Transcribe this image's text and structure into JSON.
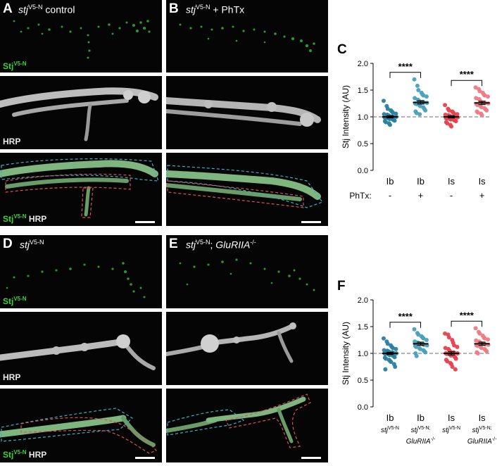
{
  "panels": {
    "A": {
      "letter": "A",
      "title_italic": "stj",
      "title_sup": "V5-N",
      "title_rest": " control"
    },
    "B": {
      "letter": "B",
      "title_italic": "stj",
      "title_sup": "V5-N",
      "title_rest": " + PhTx"
    },
    "D": {
      "letter": "D",
      "title_italic": "stj",
      "title_sup": "V5-N",
      "title_rest": ""
    },
    "E": {
      "letter": "E",
      "title_italic": "stj",
      "title_sup": "V5-N",
      "title_rest": "; ",
      "title_italic2": "GluRIIA",
      "title_sup2": "-/-"
    }
  },
  "channels": {
    "stj": "Stj",
    "stj_sup": "V5-N",
    "hrp": "HRP"
  },
  "chart_data": [
    {
      "panel_letter": "C",
      "type": "scatter",
      "ylabel": "Stj Intensity (AU)",
      "ylim": [
        0.0,
        2.0
      ],
      "yticks": [
        "0.0",
        "0.5",
        "1.0",
        "1.5",
        "2.0"
      ],
      "reference_line": 1.0,
      "categories": [
        "Ib",
        "Ib",
        "Is",
        "Is"
      ],
      "row2_label": "PhTx:",
      "row2": [
        "-",
        "+",
        "-",
        "+"
      ],
      "colors": [
        "#2a7f9e",
        "#4aa0b8",
        "#e8404f",
        "#ef7a84"
      ],
      "means": [
        1.0,
        1.27,
        1.0,
        1.26
      ],
      "sem": [
        0.02,
        0.03,
        0.02,
        0.03
      ],
      "significance": [
        {
          "from": 0,
          "to": 1,
          "label": "****"
        },
        {
          "from": 2,
          "to": 3,
          "label": "****"
        }
      ],
      "series": [
        {
          "values": [
            1.3,
            1.2,
            1.15,
            1.12,
            1.1,
            1.08,
            1.06,
            1.05,
            1.04,
            1.03,
            1.02,
            1.01,
            1.0,
            1.0,
            0.99,
            0.98,
            0.97,
            0.96,
            0.95,
            0.94,
            0.93,
            0.92,
            0.9,
            0.88,
            0.85
          ]
        },
        {
          "values": [
            1.7,
            1.58,
            1.5,
            1.45,
            1.42,
            1.4,
            1.38,
            1.35,
            1.32,
            1.3,
            1.29,
            1.28,
            1.27,
            1.26,
            1.25,
            1.24,
            1.22,
            1.2,
            1.18,
            1.15,
            1.12,
            1.1,
            1.07,
            1.05
          ]
        },
        {
          "values": [
            1.22,
            1.15,
            1.12,
            1.1,
            1.08,
            1.06,
            1.05,
            1.04,
            1.03,
            1.02,
            1.01,
            1.0,
            1.0,
            0.99,
            0.98,
            0.97,
            0.96,
            0.95,
            0.94,
            0.93,
            0.92,
            0.9,
            0.88,
            0.85,
            0.82
          ]
        },
        {
          "values": [
            1.55,
            1.52,
            1.48,
            1.45,
            1.42,
            1.4,
            1.38,
            1.35,
            1.33,
            1.3,
            1.28,
            1.27,
            1.26,
            1.25,
            1.24,
            1.22,
            1.2,
            1.18,
            1.16,
            1.14,
            1.12,
            1.1,
            1.08,
            1.06,
            1.03
          ]
        }
      ]
    },
    {
      "panel_letter": "F",
      "type": "scatter",
      "ylabel": "Stj Intensity (AU)",
      "ylim": [
        0.0,
        2.0
      ],
      "yticks": [
        "0.0",
        "0.5",
        "1.0",
        "1.5",
        "2.0"
      ],
      "reference_line": 1.0,
      "categories": [
        "Ib",
        "Ib",
        "Is",
        "Is"
      ],
      "genotype_italic": "stj",
      "genotype_sup": "V5-N",
      "genotype2_line2_italic": "GluRIIA",
      "genotype2_line2_sup": "-/-",
      "genotype_types": [
        "single",
        "double",
        "single",
        "double"
      ],
      "colors": [
        "#2a7f9e",
        "#4aa0b8",
        "#e8404f",
        "#ef7a84"
      ],
      "means": [
        1.0,
        1.18,
        1.0,
        1.18
      ],
      "sem": [
        0.02,
        0.03,
        0.03,
        0.03
      ],
      "significance": [
        {
          "from": 0,
          "to": 1,
          "label": "****"
        },
        {
          "from": 2,
          "to": 3,
          "label": "****"
        }
      ],
      "series": [
        {
          "values": [
            1.28,
            1.22,
            1.18,
            1.15,
            1.12,
            1.1,
            1.08,
            1.06,
            1.05,
            1.04,
            1.03,
            1.02,
            1.01,
            1.0,
            1.0,
            0.99,
            0.98,
            0.97,
            0.96,
            0.95,
            0.93,
            0.92,
            0.9,
            0.88,
            0.86,
            0.84,
            0.8,
            0.75,
            0.7
          ]
        },
        {
          "values": [
            1.45,
            1.38,
            1.35,
            1.32,
            1.3,
            1.28,
            1.25,
            1.22,
            1.2,
            1.19,
            1.18,
            1.17,
            1.16,
            1.15,
            1.14,
            1.12,
            1.1,
            1.08,
            1.06,
            1.04,
            1.02,
            1.0,
            0.95
          ]
        },
        {
          "values": [
            1.37,
            1.35,
            1.3,
            1.25,
            1.2,
            1.15,
            1.12,
            1.1,
            1.08,
            1.05,
            1.03,
            1.02,
            1.01,
            1.0,
            1.0,
            0.99,
            0.98,
            0.96,
            0.95,
            0.93,
            0.9,
            0.88,
            0.85,
            0.82,
            0.8,
            0.75,
            0.7
          ]
        },
        {
          "values": [
            1.47,
            1.4,
            1.37,
            1.33,
            1.3,
            1.28,
            1.26,
            1.24,
            1.22,
            1.2,
            1.19,
            1.18,
            1.17,
            1.16,
            1.15,
            1.14,
            1.12,
            1.1,
            1.08,
            1.06,
            1.04,
            1.02,
            1.0
          ]
        }
      ]
    }
  ]
}
